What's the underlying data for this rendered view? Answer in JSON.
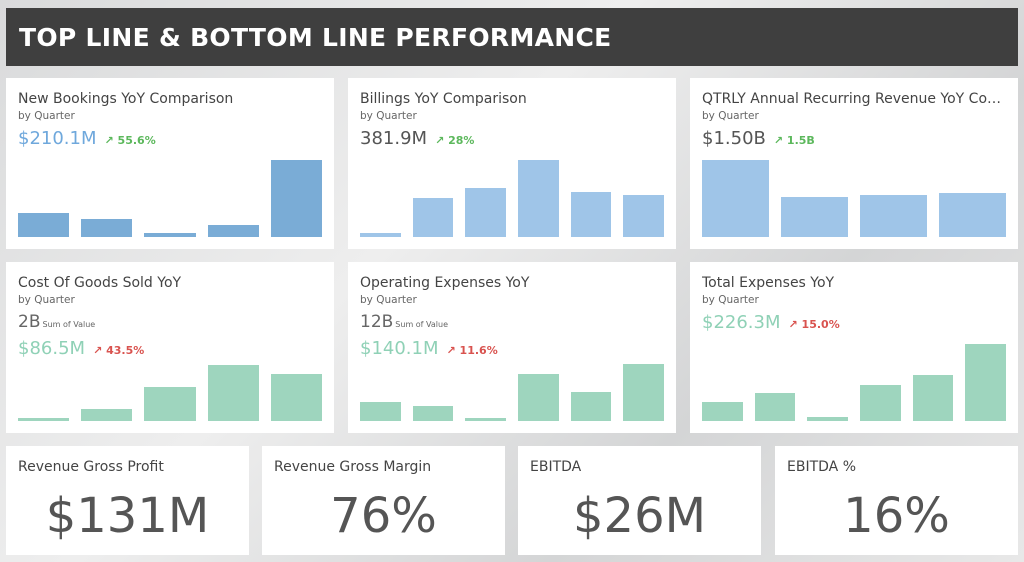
{
  "header": {
    "title": "TOP LINE & BOTTOM LINE PERFORMANCE"
  },
  "cards": [
    {
      "title": "New Bookings YoY Comparison",
      "subtitle": "by Quarter",
      "kpi": "$210.1M",
      "delta": "↗ 55.6%",
      "kpi_color": "#6fa8dc",
      "bar_color": "#7aacd6",
      "chart_data": {
        "type": "bar",
        "values": [
          26,
          19,
          4,
          13,
          82
        ],
        "ylim": [
          0,
          90
        ]
      }
    },
    {
      "title": "Billings YoY Comparison",
      "subtitle": "by Quarter",
      "kpi": "381.9M",
      "delta": "↗ 28%",
      "kpi_color": "#555555",
      "bar_color": "#9fc5e8",
      "chart_data": {
        "type": "bar",
        "values": [
          4,
          42,
          53,
          82,
          48,
          45
        ],
        "ylim": [
          0,
          90
        ]
      }
    },
    {
      "title": "QTRLY Annual Recurring Revenue YoY Com...",
      "subtitle": "by Quarter",
      "kpi": "$1.50B",
      "delta": "↗ 1.5B",
      "kpi_color": "#555555",
      "bar_color": "#9fc5e8",
      "chart_data": {
        "type": "bar",
        "values": [
          82,
          43,
          45,
          47
        ],
        "ylim": [
          0,
          90
        ]
      }
    },
    {
      "title": "Cost Of Goods Sold YoY",
      "subtitle": "by Quarter",
      "sum_value": "2B",
      "sum_label": "Sum of Value",
      "kpi": "$86.5M",
      "delta": "↗ 43.5%",
      "kpi_color": "#8fd1b6",
      "bar_color": "#9ed5be",
      "chart_data": {
        "type": "bar",
        "values": [
          3,
          12,
          35,
          58,
          49
        ],
        "ylim": [
          0,
          62
        ]
      }
    },
    {
      "title": "Operating Expenses YoY",
      "subtitle": "by Quarter",
      "sum_value": "12B",
      "sum_label": "Sum of Value",
      "kpi": "$140.1M",
      "delta": "↗ 11.6%",
      "kpi_color": "#8fd1b6",
      "bar_color": "#9ed5be",
      "chart_data": {
        "type": "bar",
        "values": [
          20,
          15,
          3,
          49,
          30,
          59
        ],
        "ylim": [
          0,
          62
        ]
      }
    },
    {
      "title": "Total Expenses YoY",
      "subtitle": "by Quarter",
      "kpi": "$226.3M",
      "delta": "↗ 15.0%",
      "kpi_color": "#8fd1b6",
      "bar_color": "#9ed5be",
      "chart_data": {
        "type": "bar",
        "values": [
          20,
          30,
          4,
          39,
          49,
          82
        ],
        "ylim": [
          0,
          90
        ]
      }
    }
  ],
  "big_numbers": [
    {
      "title": "Revenue Gross Profit",
      "value": "$131M"
    },
    {
      "title": "Revenue Gross Margin",
      "value": "76%"
    },
    {
      "title": "EBITDA",
      "value": "$26M"
    },
    {
      "title": "EBITDA %",
      "value": "16%"
    }
  ]
}
